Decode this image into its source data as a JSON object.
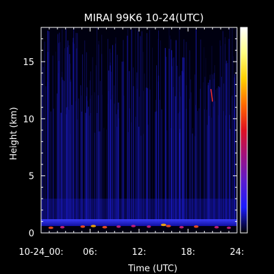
{
  "chart_data": {
    "type": "heatmap",
    "title": "MIRAI 99K6 10-24(UTC)",
    "xlabel": "Time (UTC)",
    "ylabel": "Height (km)",
    "xlim": [
      0,
      24
    ],
    "ylim": [
      0,
      18
    ],
    "x_ticks": [
      {
        "value": 0,
        "label": "10-24_00:"
      },
      {
        "value": 6,
        "label": "06:"
      },
      {
        "value": 12,
        "label": "12:"
      },
      {
        "value": 18,
        "label": "18:"
      },
      {
        "value": 24,
        "label": "24:"
      }
    ],
    "y_ticks": [
      {
        "value": 0,
        "label": "0"
      },
      {
        "value": 5,
        "label": "5"
      },
      {
        "value": 10,
        "label": "10"
      },
      {
        "value": 15,
        "label": "15"
      }
    ],
    "background_layer": {
      "height_km": [
        0,
        0.6
      ],
      "description_color": "#2a2cff"
    },
    "hotspots": [
      {
        "time": 1.2,
        "height": 0.45,
        "intensity": 0.8
      },
      {
        "time": 2.6,
        "height": 0.5,
        "intensity": 0.6
      },
      {
        "time": 5.1,
        "height": 0.55,
        "intensity": 0.7
      },
      {
        "time": 6.4,
        "height": 0.6,
        "intensity": 0.9
      },
      {
        "time": 7.8,
        "height": 0.5,
        "intensity": 0.75
      },
      {
        "time": 9.5,
        "height": 0.55,
        "intensity": 0.6
      },
      {
        "time": 11.3,
        "height": 0.6,
        "intensity": 0.65
      },
      {
        "time": 13.2,
        "height": 0.55,
        "intensity": 0.55
      },
      {
        "time": 15.0,
        "height": 0.7,
        "intensity": 0.95
      },
      {
        "time": 15.6,
        "height": 0.6,
        "intensity": 0.8
      },
      {
        "time": 17.2,
        "height": 0.5,
        "intensity": 0.6
      },
      {
        "time": 19.0,
        "height": 0.55,
        "intensity": 0.7
      },
      {
        "time": 21.5,
        "height": 0.5,
        "intensity": 0.6
      },
      {
        "time": 23.0,
        "height": 0.45,
        "intensity": 0.55
      }
    ],
    "feature_streak": {
      "time": [
        20.8,
        21.0
      ],
      "height": [
        11.5,
        12.6
      ],
      "color": "#ff3030"
    },
    "colorbar": {
      "colors": [
        "#000000",
        "#1a1aff",
        "#5a1ad0",
        "#a01080",
        "#e01020",
        "#ff6a00",
        "#ffd000",
        "#ffff80",
        "#ffffff"
      ],
      "placement": "right"
    }
  }
}
